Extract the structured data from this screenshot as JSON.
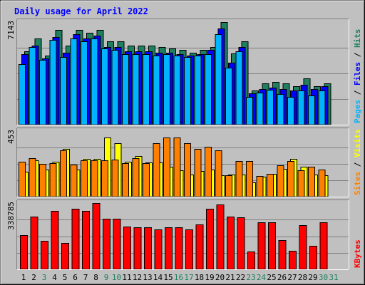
{
  "chart_data": [
    {
      "panel": "hits",
      "type": "bar",
      "title": "Daily usage for April 2022",
      "y_tick_label": "7143",
      "ylim": [
        0,
        7143
      ],
      "x_labels": [
        "1",
        "2",
        "3",
        "4",
        "5",
        "6",
        "7",
        "8",
        "9",
        "10",
        "11",
        "12",
        "13",
        "14",
        "15",
        "16",
        "17",
        "18",
        "19",
        "20",
        "21",
        "22",
        "23",
        "24",
        "25",
        "26",
        "27",
        "28",
        "29",
        "30",
        "31"
      ],
      "weekend_days": [
        3,
        9,
        10,
        16,
        17,
        23,
        24,
        30,
        31
      ],
      "legend": [
        {
          "text": "Pages",
          "color": "#00b4ff"
        },
        {
          "text": " / ",
          "color": "#000000"
        },
        {
          "text": "Files",
          "color": "#0000ff"
        },
        {
          "text": " / ",
          "color": "#000000"
        },
        {
          "text": "Hits",
          "color": "#1f8060"
        }
      ],
      "series": [
        {
          "name": "Hits",
          "color": "#1f8060",
          "values": [
            5100,
            6000,
            4800,
            6600,
            5500,
            6600,
            6400,
            6600,
            5800,
            5800,
            5500,
            5500,
            5500,
            5400,
            5300,
            5200,
            5000,
            5200,
            5400,
            7143,
            4950,
            5800,
            2400,
            2900,
            3000,
            2900,
            2700,
            3200,
            2700,
            2900
          ]
        },
        {
          "name": "Files",
          "color": "#0000ff",
          "values": [
            4900,
            5500,
            4600,
            6100,
            5000,
            6300,
            6000,
            6200,
            5400,
            5400,
            5100,
            5100,
            5100,
            5000,
            5000,
            4900,
            4800,
            4900,
            5200,
            6700,
            4300,
            5400,
            2200,
            2500,
            2600,
            2500,
            2400,
            2800,
            2500,
            2700
          ]
        },
        {
          "name": "Pages",
          "color": "#00b4ff",
          "values": [
            4200,
            5400,
            4500,
            5900,
            4700,
            6000,
            5800,
            6000,
            5300,
            5200,
            4900,
            4900,
            4900,
            4800,
            4900,
            4800,
            4700,
            4800,
            4900,
            6300,
            3950,
            5100,
            1950,
            2250,
            2450,
            2150,
            1950,
            2400,
            2050,
            2400
          ]
        }
      ]
    },
    {
      "panel": "visits",
      "type": "bar",
      "y_tick_label": "453",
      "ylim": [
        0,
        453
      ],
      "legend": [
        {
          "text": "Sites",
          "color": "#ff8000"
        },
        {
          "text": " / ",
          "color": "#000000"
        },
        {
          "text": "Visits",
          "color": "#ffff00"
        }
      ],
      "series": [
        {
          "name": "Visits",
          "color": "#ffff00",
          "values": [
            170,
            250,
            185,
            240,
            330,
            185,
            260,
            260,
            410,
            370,
            240,
            280,
            235,
            235,
            205,
            180,
            155,
            175,
            185,
            150,
            155,
            155,
            100,
            140,
            160,
            190,
            260,
            205,
            155,
            150
          ]
        },
        {
          "name": "Sites",
          "color": "#ff8000",
          "values": [
            240,
            265,
            225,
            230,
            320,
            220,
            250,
            250,
            250,
            255,
            230,
            265,
            230,
            370,
            410,
            410,
            370,
            330,
            345,
            320,
            150,
            245,
            245,
            145,
            160,
            215,
            245,
            180,
            205,
            185
          ]
        }
      ]
    },
    {
      "panel": "kbytes",
      "type": "bar",
      "y_tick_label": "338785",
      "ylim": [
        0,
        338785
      ],
      "legend": [
        {
          "text": "KBytes",
          "color": "#ff0000"
        }
      ],
      "series": [
        {
          "name": "KBytes",
          "color": "#ff0000",
          "values": [
            175000,
            270000,
            145000,
            300000,
            135000,
            310000,
            300000,
            338785,
            260000,
            260000,
            220000,
            215000,
            215000,
            205000,
            215000,
            215000,
            205000,
            230000,
            310000,
            330000,
            270000,
            265000,
            90000,
            240000,
            240000,
            150000,
            95000,
            225000,
            120000,
            240000
          ]
        }
      ]
    }
  ]
}
